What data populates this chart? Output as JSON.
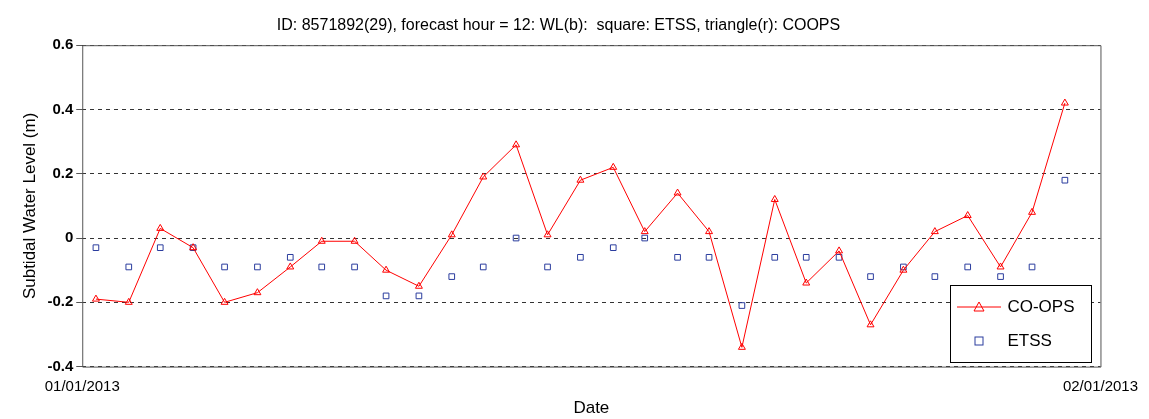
{
  "chart_data": {
    "type": "line",
    "title": "ID: 8571892(29), forecast hour = 12: WL(b):  square: ETSS, triangle(r): COOPS",
    "xlabel": "Date",
    "ylabel": "Subtidal Water Level (m)",
    "x": [
      "2013-01-01T10:00",
      "2013-01-02T10:00",
      "2013-01-03T09:00",
      "2013-01-04T09:00",
      "2013-01-05T08:00",
      "2013-01-06T08:00",
      "2013-01-07T08:00",
      "2013-01-08T07:00",
      "2013-01-09T07:00",
      "2013-01-10T06:00",
      "2013-01-11T06:00",
      "2013-01-12T06:00",
      "2013-01-13T05:00",
      "2013-01-14T05:00",
      "2013-01-15T04:00",
      "2013-01-16T04:00",
      "2013-01-17T04:00",
      "2013-01-18T03:00",
      "2013-01-19T03:00",
      "2013-01-20T02:00",
      "2013-01-21T02:00",
      "2013-01-22T02:00",
      "2013-01-23T01:00",
      "2013-01-24T01:00",
      "2013-01-25T00:00",
      "2013-01-26T00:00",
      "2013-01-26T23:00",
      "2013-01-27T23:00",
      "2013-01-28T23:00",
      "2013-01-29T22:00",
      "2013-01-30T22:00"
    ],
    "series": [
      {
        "name": "CO-OPS",
        "color": "#ff0000",
        "marker": "triangle",
        "line_style": "solid",
        "values": [
          -0.19,
          -0.2,
          0.03,
          -0.03,
          -0.2,
          -0.17,
          -0.09,
          -0.01,
          -0.01,
          -0.1,
          -0.15,
          0.01,
          0.19,
          0.29,
          0.01,
          0.18,
          0.22,
          0.02,
          0.14,
          0.02,
          -0.34,
          0.12,
          -0.14,
          -0.04,
          -0.27,
          -0.1,
          0.02,
          0.07,
          -0.09,
          0.08,
          0.42
        ]
      },
      {
        "name": "ETSS",
        "type": "scatter",
        "color": "#2b3d9e",
        "marker": "square",
        "values": [
          -0.03,
          -0.09,
          -0.03,
          -0.03,
          -0.09,
          -0.09,
          -0.06,
          -0.09,
          -0.09,
          -0.18,
          -0.18,
          -0.12,
          -0.09,
          0,
          -0.09,
          -0.06,
          -0.03,
          0,
          -0.06,
          -0.06,
          -0.21,
          -0.06,
          -0.06,
          -0.06,
          -0.12,
          -0.09,
          -0.12,
          -0.09,
          -0.12,
          -0.09,
          0.18
        ]
      }
    ],
    "xlim": [
      "2013-01-01",
      "2013-02-01"
    ],
    "xticks": [
      {
        "value": "2013-01-01",
        "label": "01/01/2013"
      },
      {
        "value": "2013-02-01",
        "label": "02/01/2013"
      }
    ],
    "ylim": [
      -0.4,
      0.6
    ],
    "yticks": [
      -0.4,
      -0.2,
      0,
      0.2,
      0.4,
      0.6
    ],
    "grid": "y",
    "legend": "bottom right"
  }
}
